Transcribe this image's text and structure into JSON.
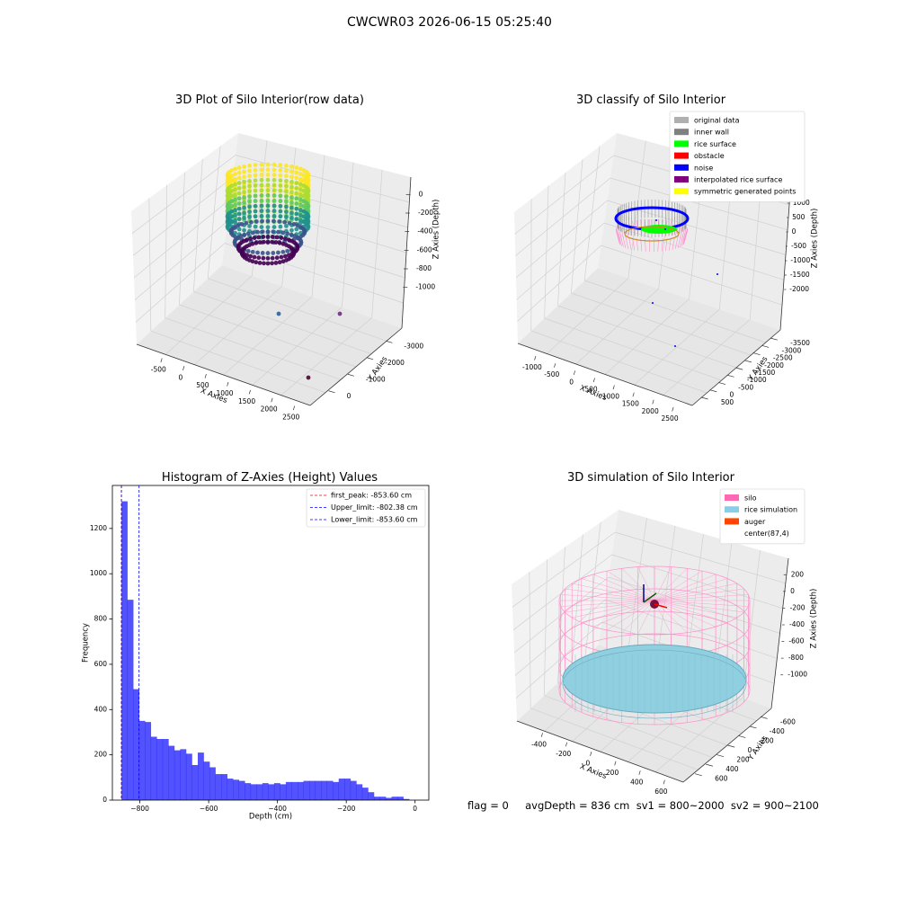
{
  "figure": {
    "suptitle": "CWCWR03 2026-06-15 05:25:40",
    "status_text": "flag = 0     avgDepth = 836 cm  sv1 = 800~2000  sv2 = 900~2100"
  },
  "chart_data": [
    {
      "type": "scatter",
      "projection": "3d",
      "title": "3D Plot of Silo Interior(row data)",
      "xlabel": "X Axies",
      "ylabel": "Y Axies",
      "zlabel": "Z Axies (Depth)",
      "x_ticks": [
        "-500",
        "0",
        "500",
        "1000",
        "1500",
        "2000",
        "2500"
      ],
      "y_ticks": [
        "0",
        "-1000",
        "-2000",
        "-3000"
      ],
      "z_ticks": [
        "0",
        "-200",
        "-400",
        "-600",
        "-800",
        "-1000"
      ],
      "colormap": "viridis",
      "outlier_points": [
        {
          "x": 150,
          "y": -400,
          "z": -1000,
          "color": "#3b6fa5"
        },
        {
          "x": 1600,
          "y": -1300,
          "z": -900,
          "color": "#7a3f8a"
        },
        {
          "x": 2350,
          "y": -3100,
          "z": -1000,
          "color": "#5a1a4a"
        }
      ],
      "grid": true
    },
    {
      "type": "scatter",
      "projection": "3d",
      "title": "3D classify of Silo Interior",
      "xlabel": "X Axies",
      "ylabel": "Y Axies",
      "zlabel": "Z Axies (Depth)",
      "x_ticks": [
        "-1000",
        "-500",
        "0",
        "500",
        "1000",
        "1500",
        "2000",
        "2500"
      ],
      "y_ticks": [
        "500",
        "0",
        "-500",
        "-1000",
        "-1500",
        "-2000",
        "-2500",
        "-3000",
        "-3500"
      ],
      "z_ticks": [
        "1000",
        "500",
        "0",
        "-500",
        "-1000",
        "-1500",
        "-2000"
      ],
      "legend": [
        {
          "label": "original data",
          "color": "#b0b0b0"
        },
        {
          "label": "inner wall",
          "color": "#808080"
        },
        {
          "label": "rice surface",
          "color": "#00ff00"
        },
        {
          "label": "obstacle",
          "color": "#ff0000"
        },
        {
          "label": "noise",
          "color": "#0000ff"
        },
        {
          "label": "interpolated rice surface",
          "color": "#800080"
        },
        {
          "label": "symmetric generated points",
          "color": "#ffff00"
        }
      ],
      "legend_position": "top-right",
      "grid": true
    },
    {
      "type": "histogram",
      "title": "Histogram of Z-Axies (Height) Values",
      "xlabel": "Depth (cm)",
      "ylabel": "Frequency",
      "xlim": [
        -880,
        40
      ],
      "ylim": [
        0,
        1390
      ],
      "x_ticks": [
        -800,
        -600,
        -400,
        -200,
        0
      ],
      "y_ticks": [
        0,
        200,
        400,
        600,
        800,
        1000,
        1200
      ],
      "bar_color": "#0000ff",
      "bin_start": -853.6,
      "bin_width": 17.07,
      "counts": [
        1320,
        885,
        490,
        350,
        345,
        280,
        270,
        270,
        240,
        220,
        225,
        205,
        155,
        210,
        170,
        145,
        115,
        115,
        95,
        90,
        85,
        75,
        70,
        70,
        75,
        70,
        75,
        70,
        80,
        80,
        80,
        85,
        85,
        85,
        85,
        85,
        80,
        95,
        95,
        85,
        70,
        55,
        35,
        15,
        15,
        10,
        15,
        15,
        5
      ],
      "vlines": [
        {
          "label": "first_peak: -853.60 cm",
          "x": -853.6,
          "color": "#ff0000"
        },
        {
          "label": "Upper_limit: -802.38 cm",
          "x": -802.38,
          "color": "#0000ff"
        },
        {
          "label": "Lower_limit: -853.60 cm",
          "x": -853.6,
          "color": "#0000ff"
        }
      ],
      "legend_position": "top-right"
    },
    {
      "type": "surface",
      "projection": "3d",
      "title": "3D simulation of Silo Interior",
      "xlabel": "X Axies",
      "ylabel": "Y Axies",
      "zlabel": "Z Axies (Depth)",
      "x_ticks": [
        "-400",
        "-200",
        "0",
        "200",
        "400",
        "600"
      ],
      "y_ticks": [
        "600",
        "400",
        "200",
        "0",
        "-200",
        "-400",
        "-600"
      ],
      "z_ticks": [
        "200",
        "0",
        "-200",
        "-400",
        "-600",
        "-800",
        "-1000"
      ],
      "legend": [
        {
          "label": "silo",
          "color": "#ff69b4"
        },
        {
          "label": "rice simulation",
          "color": "#87ceeb"
        },
        {
          "label": "auger",
          "color": "#ff4500"
        },
        {
          "label": "center(87,4)",
          "color": ""
        }
      ],
      "legend_position": "top-right",
      "grid": true
    }
  ]
}
